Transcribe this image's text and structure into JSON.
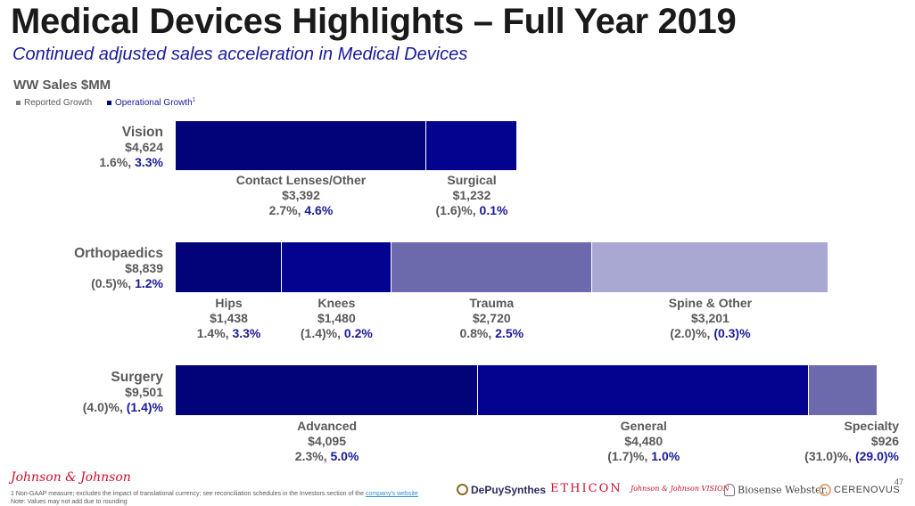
{
  "title": "Medical Devices Highlights – Full Year 2019",
  "subtitle": "Continued adjusted sales acceleration in Medical Devices",
  "section_label": "WW Sales $MM",
  "legend": {
    "reported": "Reported Growth",
    "operational": "Operational Growth",
    "operational_sup": "1"
  },
  "colors": {
    "dark_navy": "#020279",
    "navy": "#03038f",
    "medium": "#6c6aac",
    "light": "#a9a8d2",
    "operational_text": "#1a1a9a",
    "reported_square": "#808080"
  },
  "categories": [
    {
      "name": "Vision",
      "sales": "$4,624",
      "reported": "1.6%, ",
      "operational": "3.3%",
      "segments": [
        {
          "name": "Contact Lenses/Other",
          "sales": "$3,392",
          "reported": "2.7%, ",
          "operational": "4.6%",
          "share": 0.7336,
          "color": "#020279"
        },
        {
          "name": "Surgical",
          "sales": "$1,232",
          "reported": "(1.6)%, ",
          "operational": "0.1%",
          "share": 0.2664,
          "color": "#03038f"
        }
      ]
    },
    {
      "name": "Orthopaedics",
      "sales": "$8,839",
      "reported": "(0.5)%, ",
      "operational": "1.2%",
      "segments": [
        {
          "name": "Hips",
          "sales": "$1,438",
          "reported": "1.4%, ",
          "operational": "3.3%",
          "share": 0.1627,
          "color": "#020279"
        },
        {
          "name": "Knees",
          "sales": "$1,480",
          "reported": "(1.4)%, ",
          "operational": "0.2%",
          "share": 0.1674,
          "color": "#03038f"
        },
        {
          "name": "Trauma",
          "sales": "$2,720",
          "reported": "0.8%, ",
          "operational": "2.5%",
          "share": 0.3077,
          "color": "#6c6aac"
        },
        {
          "name": "Spine & Other",
          "sales": "$3,201",
          "reported": "(2.0)%, ",
          "operational": "(0.3)%",
          "share": 0.3622,
          "color": "#a9a8d2"
        }
      ]
    },
    {
      "name": "Surgery",
      "sales": "$9,501",
      "reported": "(4.0)%, ",
      "operational": "(1.4)%",
      "segments": [
        {
          "name": "Advanced",
          "sales": "$4,095",
          "reported": "2.3%, ",
          "operational": "5.0%",
          "share": 0.431,
          "color": "#020279"
        },
        {
          "name": "General",
          "sales": "$4,480",
          "reported": "(1.7)%, ",
          "operational": "1.0%",
          "share": 0.4715,
          "color": "#03038f"
        },
        {
          "name": "Specialty",
          "sales": "$926",
          "reported": "(31.0)%, ",
          "operational": "(29.0)%",
          "share": 0.0975,
          "color": "#6c6aac"
        }
      ]
    }
  ],
  "footer": {
    "note1_prefix": "1 Non-GAAP measure; excludes the impact of translational currency; see reconciliation schedules in the Investors section of the ",
    "note1_link": "company's website",
    "note2": "Note: Values may not add due to rounding",
    "page_number": "47",
    "jnj_logo": "Johnson & Johnson",
    "brands": [
      "DePuySynthes",
      "ETHICON",
      "Johnson & Johnson VISION",
      "Biosense Webster.",
      "CERENOVUS"
    ]
  }
}
